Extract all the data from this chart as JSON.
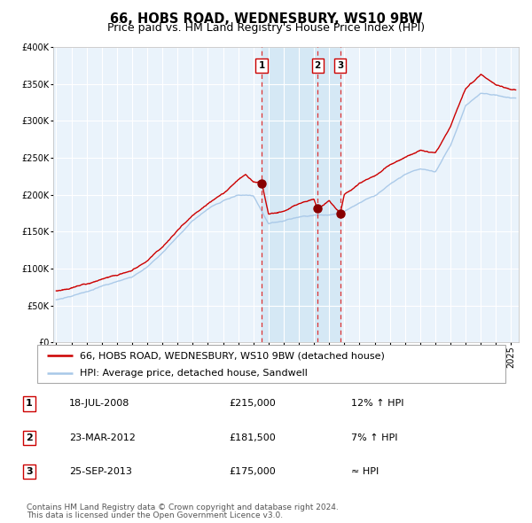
{
  "title": "66, HOBS ROAD, WEDNESBURY, WS10 9BW",
  "subtitle": "Price paid vs. HM Land Registry's House Price Index (HPI)",
  "background_color": "#ffffff",
  "plot_bg_color": "#eaf3fb",
  "grid_color": "#ffffff",
  "hpi_line_color": "#a8c8e8",
  "price_line_color": "#cc0000",
  "sale_marker_color": "#880000",
  "dashed_line_color": "#dd3333",
  "shade_color": "#c8dff0",
  "ylim": [
    0,
    400000
  ],
  "yticks": [
    0,
    50000,
    100000,
    150000,
    200000,
    250000,
    300000,
    350000,
    400000
  ],
  "xlim_start": 1994.8,
  "xlim_end": 2025.5,
  "xtick_years": [
    1995,
    1996,
    1997,
    1998,
    1999,
    2000,
    2001,
    2002,
    2003,
    2004,
    2005,
    2006,
    2007,
    2008,
    2009,
    2010,
    2011,
    2012,
    2013,
    2014,
    2015,
    2016,
    2017,
    2018,
    2019,
    2020,
    2021,
    2022,
    2023,
    2024,
    2025
  ],
  "sale_dates": [
    2008.54,
    2012.23,
    2013.73
  ],
  "sale_prices": [
    215000,
    181500,
    175000
  ],
  "sale_labels": [
    "1",
    "2",
    "3"
  ],
  "legend_red_label": "66, HOBS ROAD, WEDNESBURY, WS10 9BW (detached house)",
  "legend_blue_label": "HPI: Average price, detached house, Sandwell",
  "table_rows": [
    [
      "1",
      "18-JUL-2008",
      "£215,000",
      "12% ↑ HPI"
    ],
    [
      "2",
      "23-MAR-2012",
      "£181,500",
      "7% ↑ HPI"
    ],
    [
      "3",
      "25-SEP-2013",
      "£175,000",
      "≈ HPI"
    ]
  ],
  "footnote1": "Contains HM Land Registry data © Crown copyright and database right 2024.",
  "footnote2": "This data is licensed under the Open Government Licence v3.0.",
  "title_fontsize": 10.5,
  "subtitle_fontsize": 9,
  "tick_fontsize": 7,
  "legend_fontsize": 8,
  "table_fontsize": 8,
  "footnote_fontsize": 6.5,
  "hpi_anchors_year": [
    1995,
    1996,
    1997,
    1998,
    1999,
    2000,
    2001,
    2002,
    2003,
    2004,
    2005,
    2006,
    2007,
    2008,
    2009,
    2010,
    2011,
    2012,
    2013,
    2014,
    2015,
    2016,
    2017,
    2018,
    2019,
    2020,
    2021,
    2022,
    2023,
    2024,
    2025
  ],
  "hpi_anchors_val": [
    58000,
    62000,
    68000,
    75000,
    81000,
    88000,
    101000,
    119000,
    141000,
    163000,
    179000,
    191000,
    199000,
    196000,
    159000,
    163000,
    169000,
    173000,
    174000,
    179000,
    191000,
    201000,
    216000,
    229000,
    236000,
    231000,
    266000,
    321000,
    339000,
    336000,
    331000
  ],
  "price_anchors_year": [
    1995,
    1996,
    1997,
    1998,
    1999,
    2000,
    2001,
    2002,
    2003,
    2004,
    2005,
    2006,
    2007,
    2007.5,
    2008,
    2008.54,
    2009,
    2010,
    2011,
    2012,
    2012.23,
    2013,
    2013.73,
    2014,
    2015,
    2016,
    2017,
    2018,
    2019,
    2020,
    2021,
    2022,
    2023,
    2024,
    2025
  ],
  "price_anchors_val": [
    70000,
    74000,
    80000,
    86000,
    90000,
    97000,
    110000,
    126000,
    149000,
    170000,
    186000,
    200000,
    218000,
    225000,
    215000,
    215000,
    172000,
    176000,
    188000,
    195000,
    181500,
    192000,
    175000,
    200000,
    214000,
    224000,
    239000,
    251000,
    258000,
    254000,
    290000,
    342000,
    362000,
    347000,
    342000
  ]
}
